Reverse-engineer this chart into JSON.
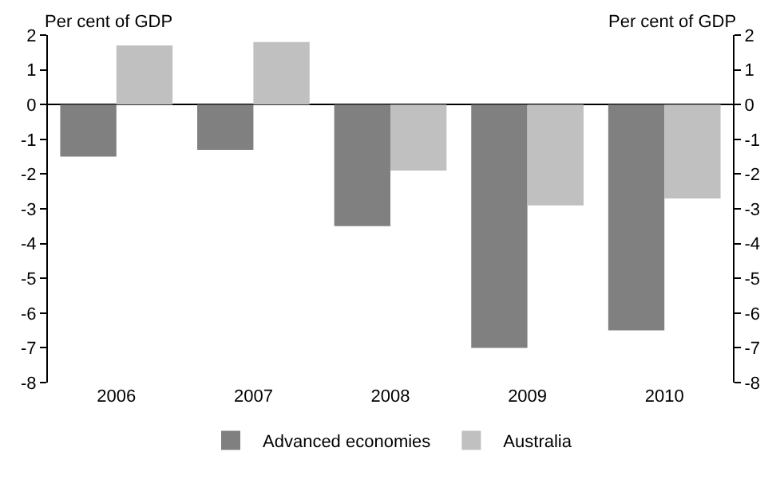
{
  "chart_data": {
    "type": "bar",
    "ylabel": "Per cent of GDP",
    "y2label": "Per cent of GDP",
    "categories": [
      "2006",
      "2007",
      "2008",
      "2009",
      "2010"
    ],
    "series": [
      {
        "name": "Advanced economies",
        "color": "#808080",
        "values": [
          -1.5,
          -1.3,
          -3.5,
          -7.0,
          -6.5
        ]
      },
      {
        "name": "Australia",
        "color": "#c0c0c0",
        "values": [
          1.7,
          1.8,
          -1.9,
          -2.9,
          -2.7
        ]
      }
    ],
    "ylim": [
      -8,
      2
    ],
    "yticks": [
      -8,
      -7,
      -6,
      -5,
      -4,
      -3,
      -2,
      -1,
      0,
      1,
      2
    ],
    "y2lim": [
      -8,
      2
    ],
    "y2ticks": [
      -8,
      -7,
      -6,
      -5,
      -4,
      -3,
      -2,
      -1,
      0,
      1,
      2
    ],
    "legend": "bottom"
  }
}
